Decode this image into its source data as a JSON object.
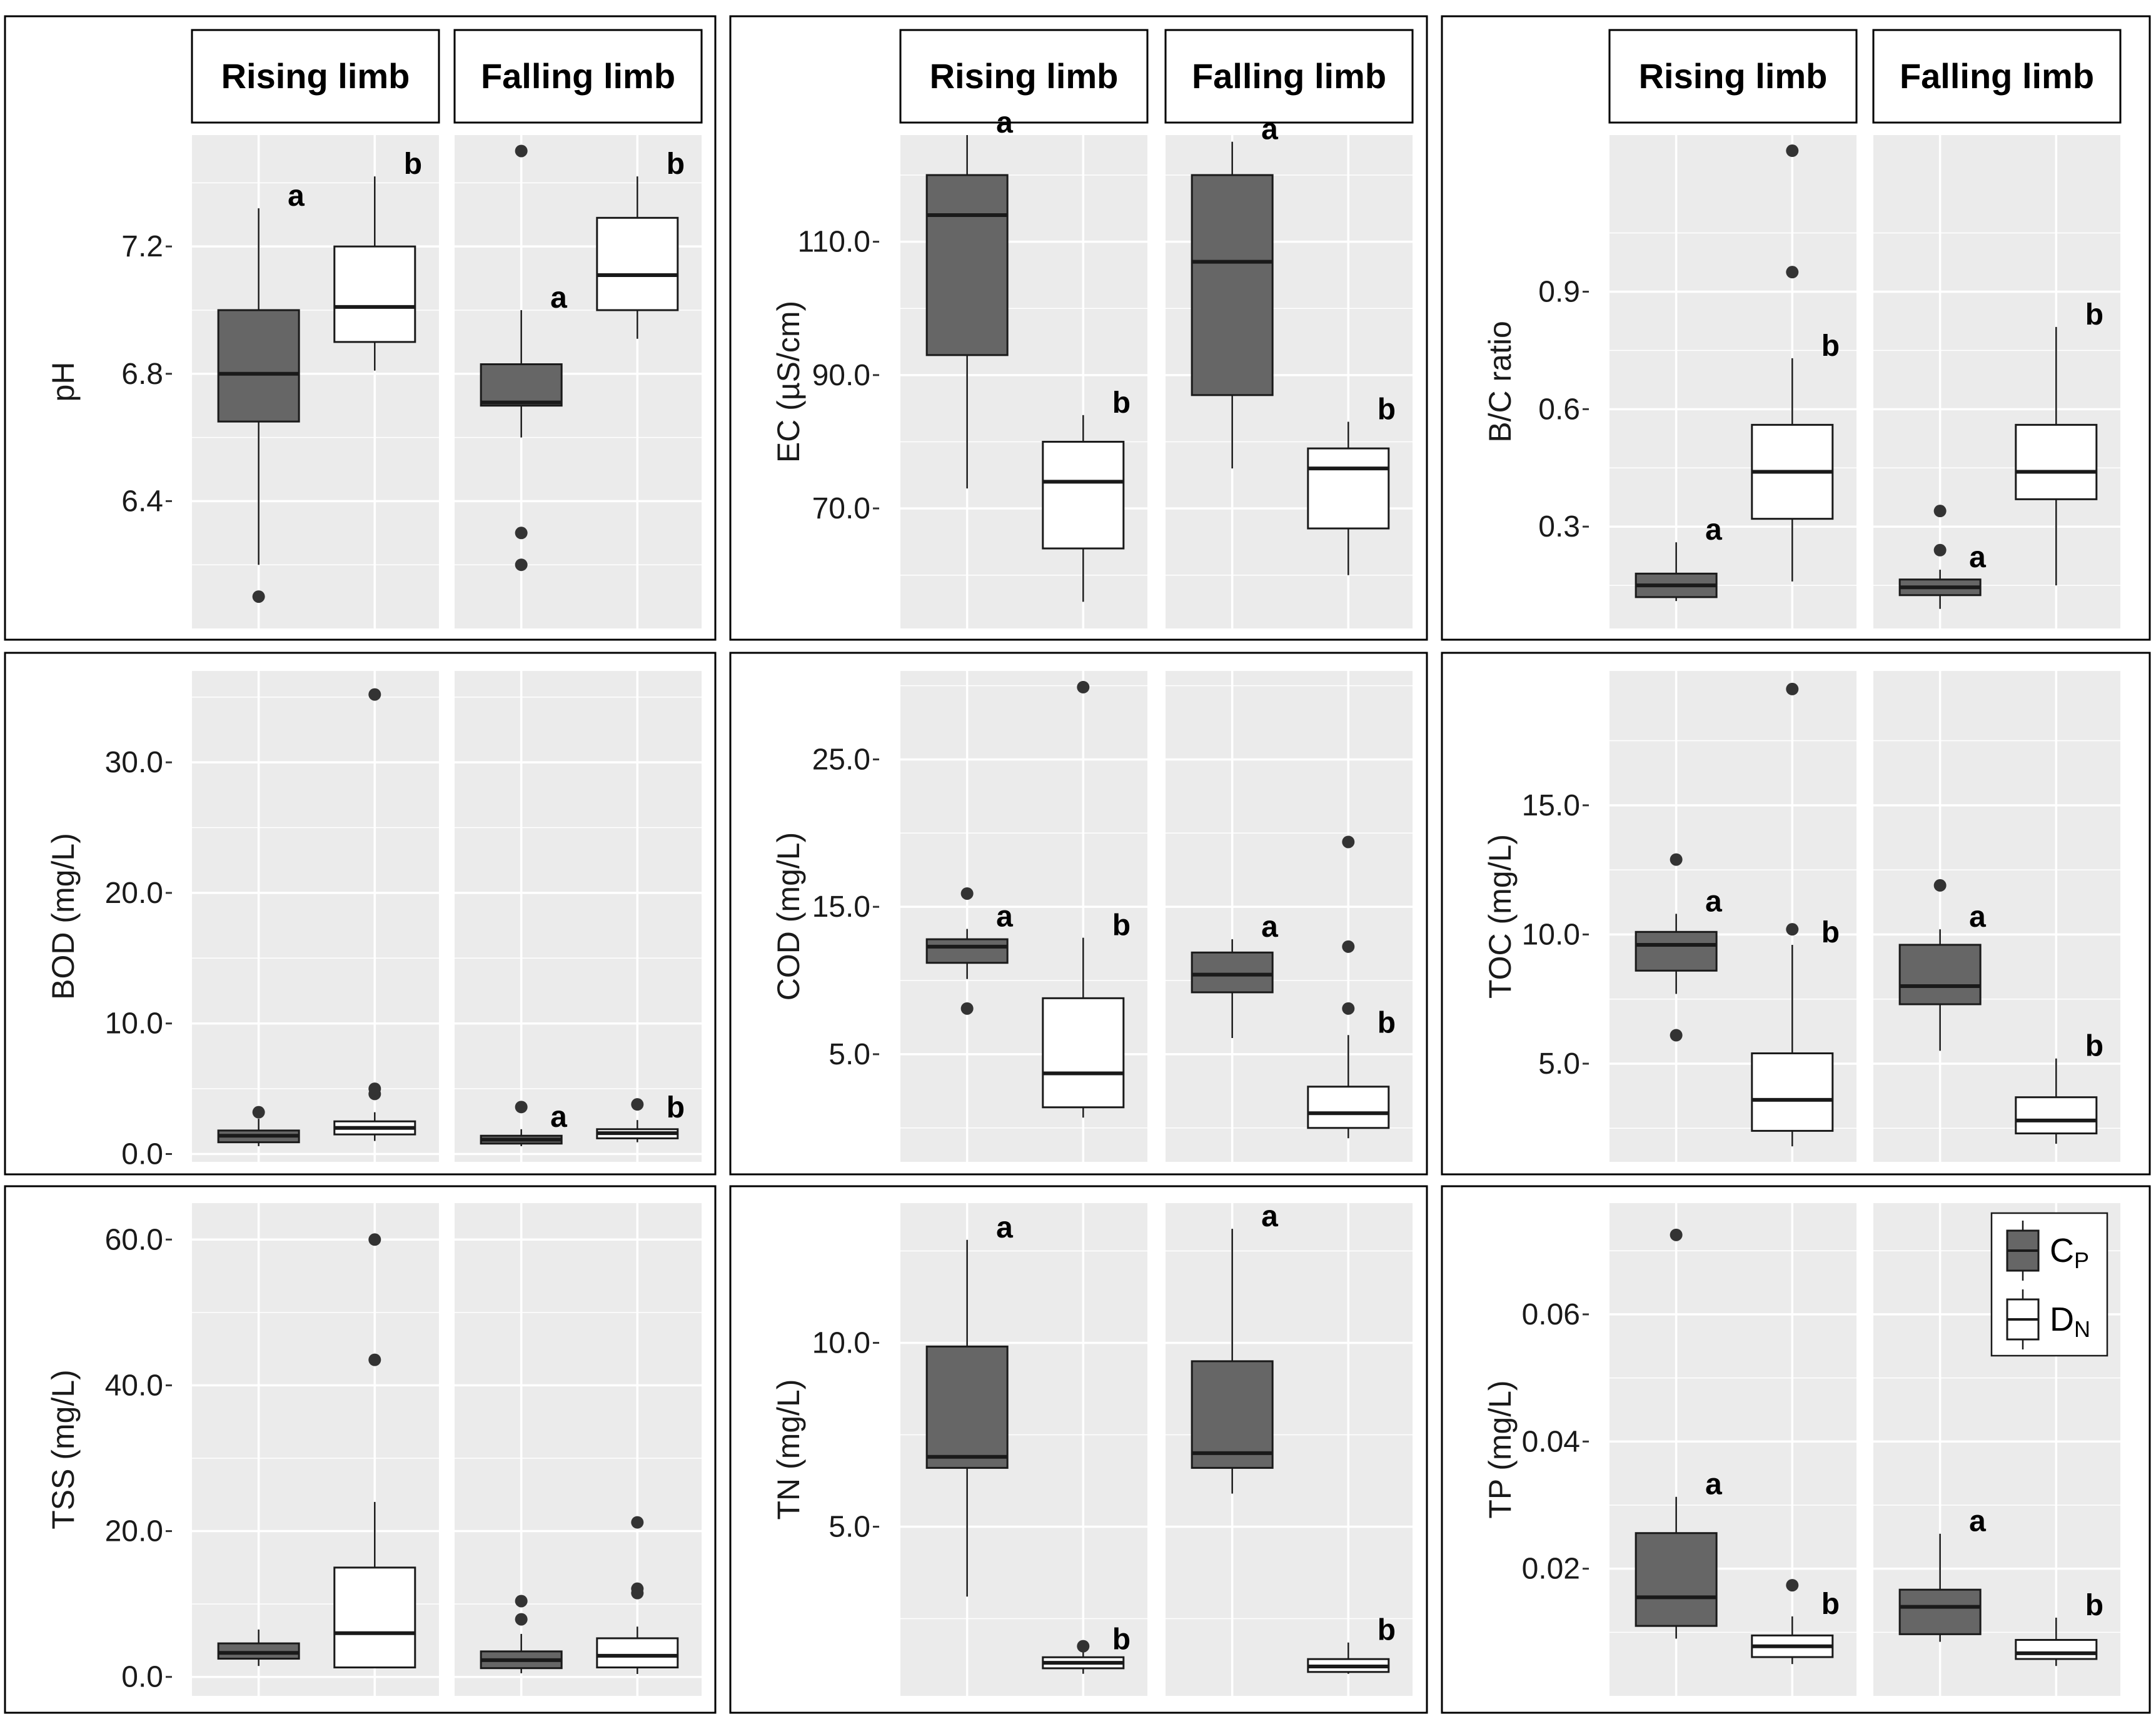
{
  "facets": [
    "Rising limb",
    "Falling limb"
  ],
  "legend": {
    "items": [
      {
        "label": "C",
        "subscript": "P",
        "color": "#666666"
      },
      {
        "label": "D",
        "subscript": "N",
        "color": "#ffffff"
      }
    ]
  },
  "colors": {
    "cp_fill": "#666666",
    "dn_fill": "#ffffff",
    "panel_bg": "#ebebeb",
    "grid": "#ffffff",
    "outline": "#1a1a1a"
  },
  "chart_data": [
    {
      "type": "boxplot",
      "ylabel": "pH",
      "ylim": [
        6.0,
        7.55
      ],
      "ticks": [
        {
          "value": 6.4,
          "label": "6.4"
        },
        {
          "value": 6.8,
          "label": "6.8"
        },
        {
          "value": 7.2,
          "label": "7.2"
        }
      ],
      "groups": [
        [
          {
            "series": "CP",
            "whisker_low": 6.2,
            "q1": 6.65,
            "median": 6.8,
            "q3": 7.0,
            "whisker_high": 7.32,
            "outliers": [
              6.1
            ],
            "letter": "a"
          },
          {
            "series": "DN",
            "whisker_low": 6.81,
            "q1": 6.9,
            "median": 7.01,
            "q3": 7.2,
            "whisker_high": 7.42,
            "outliers": [],
            "letter": "b"
          }
        ],
        [
          {
            "series": "CP",
            "whisker_low": 6.6,
            "q1": 6.7,
            "median": 6.71,
            "q3": 6.83,
            "whisker_high": 7.0,
            "outliers": [
              6.2,
              6.3,
              7.5
            ],
            "letter": "a"
          },
          {
            "series": "DN",
            "whisker_low": 6.91,
            "q1": 7.0,
            "median": 7.11,
            "q3": 7.29,
            "whisker_high": 7.42,
            "outliers": [],
            "letter": "b"
          }
        ]
      ]
    },
    {
      "type": "boxplot",
      "ylabel": "EC (µS/cm)",
      "ylim": [
        52,
        126
      ],
      "ticks": [
        {
          "value": 70,
          "label": "70.0"
        },
        {
          "value": 90,
          "label": "90.0"
        },
        {
          "value": 110,
          "label": "110.0"
        }
      ],
      "groups": [
        [
          {
            "series": "CP",
            "whisker_low": 73,
            "q1": 93,
            "median": 114,
            "q3": 120,
            "whisker_high": 126,
            "outliers": [],
            "letter": "a"
          },
          {
            "series": "DN",
            "whisker_low": 56,
            "q1": 64,
            "median": 74,
            "q3": 80,
            "whisker_high": 84,
            "outliers": [],
            "letter": "b"
          }
        ],
        [
          {
            "series": "CP",
            "whisker_low": 76,
            "q1": 87,
            "median": 107,
            "q3": 120,
            "whisker_high": 125,
            "outliers": [],
            "letter": "a"
          },
          {
            "series": "DN",
            "whisker_low": 60,
            "q1": 67,
            "median": 76,
            "q3": 79,
            "whisker_high": 83,
            "outliers": [],
            "letter": "b"
          }
        ]
      ]
    },
    {
      "type": "boxplot",
      "ylabel": "B/C ratio",
      "ylim": [
        0.04,
        1.3
      ],
      "ticks": [
        {
          "value": 0.3,
          "label": "0.3"
        },
        {
          "value": 0.6,
          "label": "0.6"
        },
        {
          "value": 0.9,
          "label": "0.9"
        }
      ],
      "groups": [
        [
          {
            "series": "CP",
            "whisker_low": 0.11,
            "q1": 0.12,
            "median": 0.15,
            "q3": 0.18,
            "whisker_high": 0.26,
            "outliers": [],
            "letter": "a"
          },
          {
            "series": "DN",
            "whisker_low": 0.16,
            "q1": 0.32,
            "median": 0.44,
            "q3": 0.56,
            "whisker_high": 0.73,
            "outliers": [
              0.95,
              1.26
            ],
            "letter": "b"
          }
        ],
        [
          {
            "series": "CP",
            "whisker_low": 0.09,
            "q1": 0.125,
            "median": 0.145,
            "q3": 0.165,
            "whisker_high": 0.19,
            "outliers": [
              0.24,
              0.34
            ],
            "letter": "a"
          },
          {
            "series": "DN",
            "whisker_low": 0.15,
            "q1": 0.37,
            "median": 0.44,
            "q3": 0.56,
            "whisker_high": 0.81,
            "outliers": [],
            "letter": "b"
          }
        ]
      ]
    },
    {
      "type": "boxplot",
      "ylabel": "BOD (mg/L)",
      "ylim": [
        -0.6,
        37
      ],
      "ticks": [
        {
          "value": 0,
          "label": "0.0"
        },
        {
          "value": 10,
          "label": "10.0"
        },
        {
          "value": 20,
          "label": "20.0"
        },
        {
          "value": 30,
          "label": "30.0"
        }
      ],
      "groups": [
        [
          {
            "series": "CP",
            "whisker_low": 0.6,
            "q1": 0.9,
            "median": 1.4,
            "q3": 1.8,
            "whisker_high": 2.7,
            "outliers": [
              3.2
            ],
            "letter": ""
          },
          {
            "series": "DN",
            "whisker_low": 1.0,
            "q1": 1.5,
            "median": 2.0,
            "q3": 2.5,
            "whisker_high": 3.2,
            "outliers": [
              4.6,
              5.0,
              35.2
            ],
            "letter": ""
          }
        ],
        [
          {
            "series": "CP",
            "whisker_low": 0.6,
            "q1": 0.8,
            "median": 1.1,
            "q3": 1.4,
            "whisker_high": 1.9,
            "outliers": [
              3.6
            ],
            "letter": "a"
          },
          {
            "series": "DN",
            "whisker_low": 0.9,
            "q1": 1.2,
            "median": 1.6,
            "q3": 1.9,
            "whisker_high": 2.6,
            "outliers": [
              3.8
            ],
            "letter": "b"
          }
        ]
      ]
    },
    {
      "type": "boxplot",
      "ylabel": "COD (mg/L)",
      "ylim": [
        -2.3,
        31
      ],
      "ticks": [
        {
          "value": 5,
          "label": "5.0"
        },
        {
          "value": 15,
          "label": "15.0"
        },
        {
          "value": 25,
          "label": "25.0"
        }
      ],
      "groups": [
        [
          {
            "series": "CP",
            "whisker_low": 10.1,
            "q1": 11.2,
            "median": 12.3,
            "q3": 12.8,
            "whisker_high": 13.5,
            "outliers": [
              8.1,
              15.9
            ],
            "letter": "a"
          },
          {
            "series": "DN",
            "whisker_low": 0.7,
            "q1": 1.4,
            "median": 3.7,
            "q3": 8.8,
            "whisker_high": 12.9,
            "outliers": [
              29.9
            ],
            "letter": "b"
          }
        ],
        [
          {
            "series": "CP",
            "whisker_low": 6.1,
            "q1": 9.2,
            "median": 10.4,
            "q3": 11.9,
            "whisker_high": 12.8,
            "outliers": [],
            "letter": "a"
          },
          {
            "series": "DN",
            "whisker_low": -0.7,
            "q1": 0.0,
            "median": 1.0,
            "q3": 2.8,
            "whisker_high": 6.3,
            "outliers": [
              8.1,
              12.3,
              19.4
            ],
            "letter": "b"
          }
        ]
      ]
    },
    {
      "type": "boxplot",
      "ylabel": "TOC (mg/L)",
      "ylim": [
        1.2,
        20.2
      ],
      "ticks": [
        {
          "value": 5,
          "label": "5.0"
        },
        {
          "value": 10,
          "label": "10.0"
        },
        {
          "value": 15,
          "label": "15.0"
        }
      ],
      "groups": [
        [
          {
            "series": "CP",
            "whisker_low": 7.7,
            "q1": 8.6,
            "median": 9.6,
            "q3": 10.1,
            "whisker_high": 10.8,
            "outliers": [
              6.1,
              12.9
            ],
            "letter": "a"
          },
          {
            "series": "DN",
            "whisker_low": 1.8,
            "q1": 2.4,
            "median": 3.6,
            "q3": 5.4,
            "whisker_high": 9.6,
            "outliers": [
              10.2,
              19.5
            ],
            "letter": "b"
          }
        ],
        [
          {
            "series": "CP",
            "whisker_low": 5.5,
            "q1": 7.3,
            "median": 8.0,
            "q3": 9.6,
            "whisker_high": 10.2,
            "outliers": [
              11.9
            ],
            "letter": "a"
          },
          {
            "series": "DN",
            "whisker_low": 1.9,
            "q1": 2.3,
            "median": 2.8,
            "q3": 3.7,
            "whisker_high": 5.2,
            "outliers": [],
            "letter": "b"
          }
        ]
      ]
    },
    {
      "type": "boxplot",
      "ylabel": "TSS (mg/L)",
      "ylim": [
        -2.6,
        65
      ],
      "ticks": [
        {
          "value": 0,
          "label": "0.0"
        },
        {
          "value": 20,
          "label": "20.0"
        },
        {
          "value": 40,
          "label": "40.0"
        },
        {
          "value": 60,
          "label": "60.0"
        }
      ],
      "groups": [
        [
          {
            "series": "CP",
            "whisker_low": 1.5,
            "q1": 2.5,
            "median": 3.3,
            "q3": 4.6,
            "whisker_high": 6.5,
            "outliers": [],
            "letter": ""
          },
          {
            "series": "DN",
            "whisker_low": 1.2,
            "q1": 1.3,
            "median": 6.0,
            "q3": 15.0,
            "whisker_high": 24.0,
            "outliers": [
              43.5,
              60.0
            ],
            "letter": ""
          }
        ],
        [
          {
            "series": "CP",
            "whisker_low": 0.5,
            "q1": 1.2,
            "median": 2.3,
            "q3": 3.5,
            "whisker_high": 5.9,
            "outliers": [
              7.9,
              10.4
            ],
            "letter": ""
          },
          {
            "series": "DN",
            "whisker_low": 0.4,
            "q1": 1.3,
            "median": 2.9,
            "q3": 5.3,
            "whisker_high": 6.9,
            "outliers": [
              11.5,
              12.1,
              21.2
            ],
            "letter": ""
          }
        ]
      ]
    },
    {
      "type": "boxplot",
      "ylabel": "TN (mg/L)",
      "ylim": [
        0.4,
        13.8
      ],
      "ticks": [
        {
          "value": 5,
          "label": "5.0"
        },
        {
          "value": 10,
          "label": "10.0"
        }
      ],
      "groups": [
        [
          {
            "series": "CP",
            "whisker_low": 3.1,
            "q1": 6.6,
            "median": 6.9,
            "q3": 9.9,
            "whisker_high": 12.8,
            "outliers": [],
            "letter": "a"
          },
          {
            "series": "DN",
            "whisker_low": 1.0,
            "q1": 1.15,
            "median": 1.3,
            "q3": 1.45,
            "whisker_high": 1.6,
            "outliers": [
              1.75
            ],
            "letter": "b"
          }
        ],
        [
          {
            "series": "CP",
            "whisker_low": 5.9,
            "q1": 6.6,
            "median": 7.0,
            "q3": 9.5,
            "whisker_high": 13.1,
            "outliers": [],
            "letter": "a"
          },
          {
            "series": "DN",
            "whisker_low": 1.0,
            "q1": 1.05,
            "median": 1.2,
            "q3": 1.4,
            "whisker_high": 1.85,
            "outliers": [],
            "letter": "b"
          }
        ]
      ]
    },
    {
      "type": "boxplot",
      "ylabel": "TP (mg/L)",
      "ylim": [
        0.0,
        0.0775
      ],
      "ticks": [
        {
          "value": 0.02,
          "label": "0.02"
        },
        {
          "value": 0.04,
          "label": "0.04"
        },
        {
          "value": 0.06,
          "label": "0.06"
        }
      ],
      "groups": [
        [
          {
            "series": "CP",
            "whisker_low": 0.009,
            "q1": 0.011,
            "median": 0.0155,
            "q3": 0.0256,
            "whisker_high": 0.0313,
            "outliers": [
              0.0725
            ],
            "letter": "a"
          },
          {
            "series": "DN",
            "whisker_low": 0.005,
            "q1": 0.0061,
            "median": 0.0078,
            "q3": 0.0095,
            "whisker_high": 0.0125,
            "outliers": [
              0.0174
            ],
            "letter": "b"
          }
        ],
        [
          {
            "series": "CP",
            "whisker_low": 0.0085,
            "q1": 0.0097,
            "median": 0.014,
            "q3": 0.0167,
            "whisker_high": 0.0255,
            "outliers": [],
            "letter": "a"
          },
          {
            "series": "DN",
            "whisker_low": 0.0047,
            "q1": 0.0058,
            "median": 0.0067,
            "q3": 0.0088,
            "whisker_high": 0.0123,
            "outliers": [],
            "letter": "b"
          }
        ]
      ]
    }
  ]
}
